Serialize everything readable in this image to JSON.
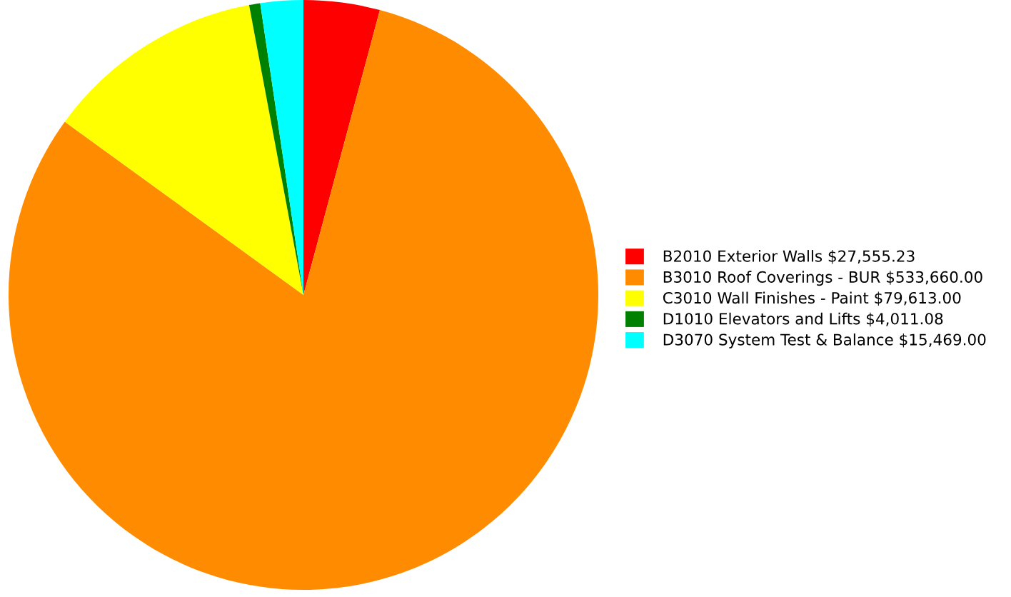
{
  "chart_data": {
    "type": "pie",
    "categories": [
      "B2010 Exterior Walls",
      "B3010 Roof Coverings - BUR",
      "C3010 Wall Finishes - Paint",
      "D1010 Elevators and Lifts",
      "D3070 System Test & Balance"
    ],
    "values": [
      27555.23,
      533660.0,
      79613.0,
      4011.08,
      15469.0
    ],
    "value_labels": [
      "$27,555.23",
      "$533,660.00",
      "$79,613.00",
      "$4,011.08",
      "$15,469.00"
    ],
    "colors": [
      "#ff0000",
      "#ff8c00",
      "#ffff00",
      "#008000",
      "#00ffff"
    ],
    "legend": "right"
  }
}
